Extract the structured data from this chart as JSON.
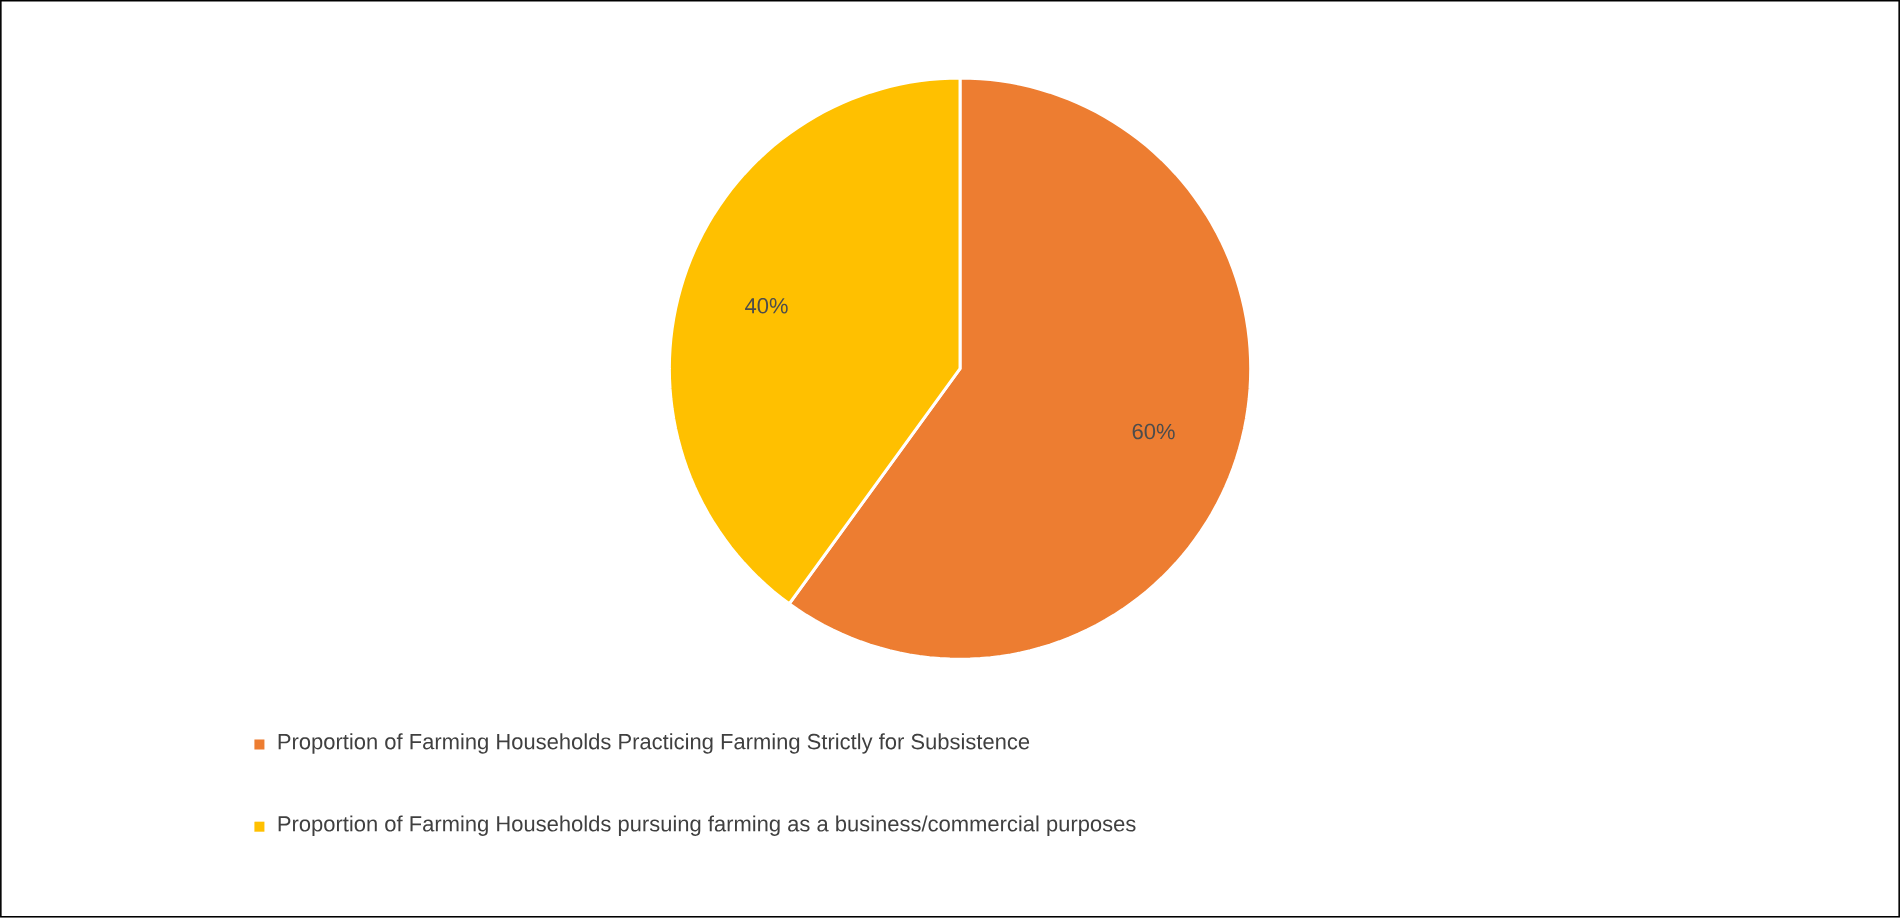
{
  "chart_data": {
    "type": "pie",
    "categories": [
      "Proportion of Farming Households Practicing Farming Strictly for Subsistence",
      "Proportion of Farming Households pursuing farming as a business/commercial purposes"
    ],
    "values": [
      60,
      40
    ],
    "colors": [
      "#ed7d31",
      "#ffc000"
    ],
    "value_labels": [
      "60%",
      "40%"
    ],
    "legend": "bottom"
  }
}
